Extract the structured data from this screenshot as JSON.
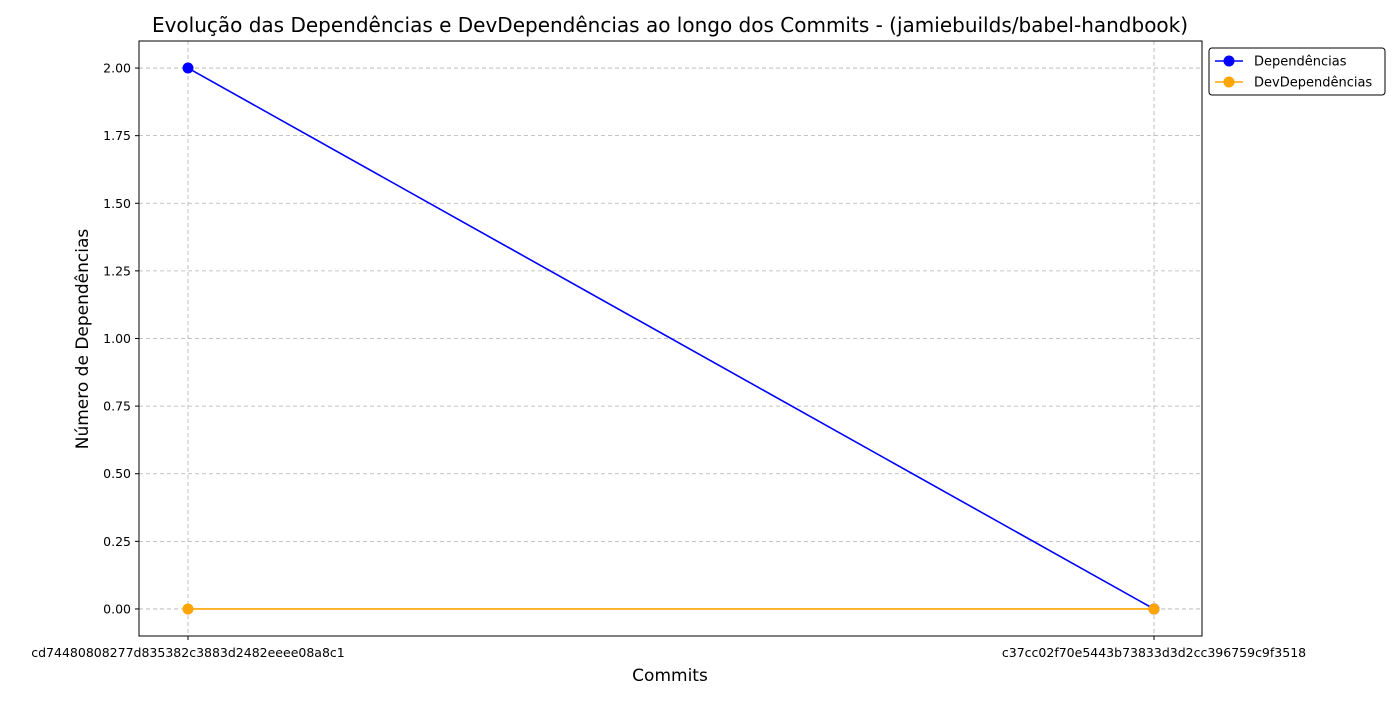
{
  "chart_data": {
    "type": "line",
    "title": "Evolução das Dependências e DevDependências ao longo dos Commits - (jamiebuilds/babel-handbook)",
    "xlabel": "Commits",
    "ylabel": "Número de Dependências",
    "categories": [
      "cd74480808277d835382c3883d2482eeee08a8c1",
      "c37cc02f70e5443b73833d3d2cc396759c9f3518"
    ],
    "ylim": [
      -0.1,
      2.1
    ],
    "yticks": [
      "0.00",
      "0.25",
      "0.50",
      "0.75",
      "1.00",
      "1.25",
      "1.50",
      "1.75",
      "2.00"
    ],
    "grid": true,
    "legend_position": "upper-right-outside",
    "series": [
      {
        "name": "Dependências",
        "values": [
          2,
          0
        ],
        "color": "#0000ff"
      },
      {
        "name": "DevDependências",
        "values": [
          0,
          0
        ],
        "color": "#ffa500"
      }
    ]
  }
}
